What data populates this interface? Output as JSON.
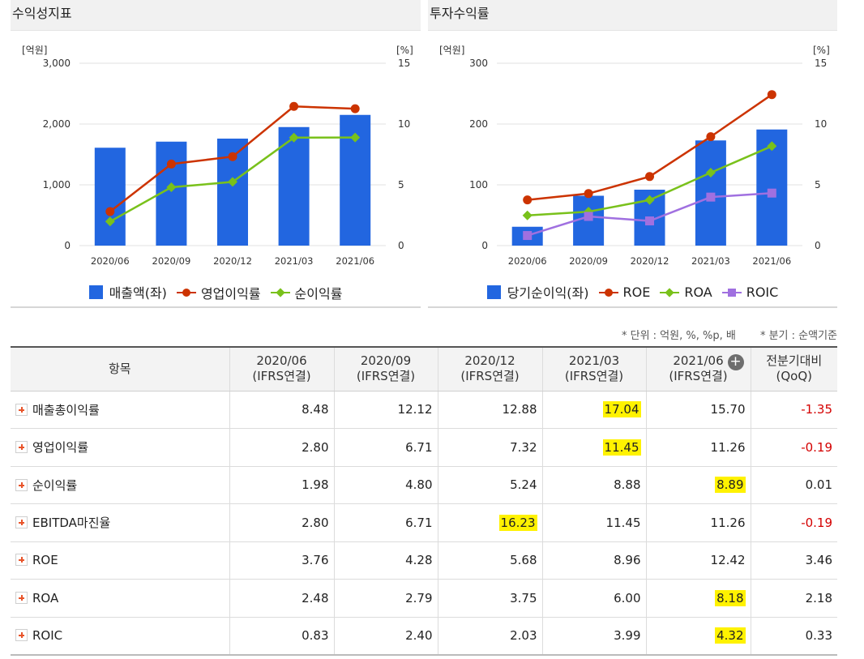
{
  "panels": {
    "left_title": "수익성지표",
    "right_title": "투자수익률"
  },
  "chart_data": [
    {
      "type": "bar",
      "title": "수익성지표",
      "categories": [
        "2020/06",
        "2020/09",
        "2020/12",
        "2021/03",
        "2021/06"
      ],
      "y_left_unit": "[억원]",
      "y_right_unit": "[%]",
      "y_left_ticks": [
        "0",
        "1,000",
        "2,000",
        "3,000"
      ],
      "y_right_ticks": [
        "0",
        "5",
        "10",
        "15"
      ],
      "ylim_left": [
        0,
        3000
      ],
      "ylim_right": [
        0,
        15
      ],
      "grid": true,
      "legend_position": "bottom",
      "series": [
        {
          "name": "매출액(좌)",
          "kind": "bar",
          "axis": "left",
          "color": "#2266e0",
          "values": [
            1610,
            1710,
            1760,
            1950,
            2150
          ]
        },
        {
          "name": "영업이익률",
          "kind": "line",
          "axis": "right",
          "marker": "circle",
          "color": "#cc3300",
          "values": [
            2.8,
            6.71,
            7.32,
            11.45,
            11.26
          ]
        },
        {
          "name": "순이익률",
          "kind": "line",
          "axis": "right",
          "marker": "diamond",
          "color": "#79c11b",
          "values": [
            1.98,
            4.8,
            5.24,
            8.88,
            8.89
          ]
        }
      ]
    },
    {
      "type": "bar",
      "title": "투자수익률",
      "categories": [
        "2020/06",
        "2020/09",
        "2020/12",
        "2021/03",
        "2021/06"
      ],
      "y_left_unit": "[억원]",
      "y_right_unit": "[%]",
      "y_left_ticks": [
        "0",
        "100",
        "200",
        "300"
      ],
      "y_right_ticks": [
        "0",
        "5",
        "10",
        "15"
      ],
      "ylim_left": [
        0,
        300
      ],
      "ylim_right": [
        0,
        15
      ],
      "grid": true,
      "legend_position": "bottom",
      "series": [
        {
          "name": "당기순이익(좌)",
          "kind": "bar",
          "axis": "left",
          "color": "#2266e0",
          "values": [
            31,
            82,
            92,
            173,
            191
          ]
        },
        {
          "name": "ROE",
          "kind": "line",
          "axis": "right",
          "marker": "circle",
          "color": "#cc3300",
          "values": [
            3.76,
            4.28,
            5.68,
            8.96,
            12.42
          ]
        },
        {
          "name": "ROA",
          "kind": "line",
          "axis": "right",
          "marker": "diamond",
          "color": "#79c11b",
          "values": [
            2.48,
            2.79,
            3.75,
            6.0,
            8.18
          ]
        },
        {
          "name": "ROIC",
          "kind": "line",
          "axis": "right",
          "marker": "square",
          "color": "#a070e0",
          "values": [
            0.83,
            2.4,
            2.03,
            3.99,
            4.32
          ]
        }
      ]
    }
  ],
  "notes": {
    "unit": "* 단위 : 억원, %, %p, 배",
    "quarter": "* 분기 : 순액기준"
  },
  "table": {
    "item_header": "항목",
    "period_headers": [
      {
        "date": "2020/06",
        "basis": "(IFRS연결)"
      },
      {
        "date": "2020/09",
        "basis": "(IFRS연결)"
      },
      {
        "date": "2020/12",
        "basis": "(IFRS연결)"
      },
      {
        "date": "2021/03",
        "basis": "(IFRS연결)"
      },
      {
        "date": "2021/06",
        "basis": "(IFRS연결)"
      }
    ],
    "change_header": {
      "line1": "전분기대비",
      "line2": "(QoQ)"
    },
    "expand_icon_glyph": "+",
    "rows": [
      {
        "label": "매출총이익률",
        "values": [
          "8.48",
          "12.12",
          "12.88",
          "17.04",
          "15.70"
        ],
        "change": "-1.35",
        "negative": true,
        "highlight": 3
      },
      {
        "label": "영업이익률",
        "values": [
          "2.80",
          "6.71",
          "7.32",
          "11.45",
          "11.26"
        ],
        "change": "-0.19",
        "negative": true,
        "highlight": 3
      },
      {
        "label": "순이익률",
        "values": [
          "1.98",
          "4.80",
          "5.24",
          "8.88",
          "8.89"
        ],
        "change": "0.01",
        "negative": false,
        "highlight": 4
      },
      {
        "label": "EBITDA마진율",
        "values": [
          "2.80",
          "6.71",
          "16.23",
          "11.45",
          "11.26"
        ],
        "change": "-0.19",
        "negative": true,
        "highlight": 2
      },
      {
        "label": "ROE",
        "values": [
          "3.76",
          "4.28",
          "5.68",
          "8.96",
          "12.42"
        ],
        "change": "3.46",
        "negative": false,
        "highlight": -1
      },
      {
        "label": "ROA",
        "values": [
          "2.48",
          "2.79",
          "3.75",
          "6.00",
          "8.18"
        ],
        "change": "2.18",
        "negative": false,
        "highlight": 4
      },
      {
        "label": "ROIC",
        "values": [
          "0.83",
          "2.40",
          "2.03",
          "3.99",
          "4.32"
        ],
        "change": "0.33",
        "negative": false,
        "highlight": 4
      }
    ]
  }
}
